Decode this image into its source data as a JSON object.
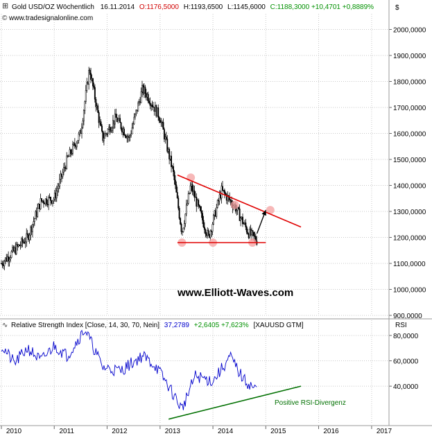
{
  "header": {
    "title": "Gold USD/OZ Wöchentlich",
    "date": "16.11.2014",
    "open": "O:1176,5000",
    "high": "H:1193,6500",
    "low": "L:1145,6000",
    "close_change": "C:1188,3000 +10,4701 +0,8889%",
    "url": "www.tradesignalonline.com",
    "currency": "$"
  },
  "watermark": "www.Elliott-Waves.com",
  "rsi_header": {
    "name": "Relative Strength Index [Close, 14, 30, 70, Nein]",
    "value": "37,2789",
    "change": "+2,6405 +7,623%",
    "symbol": "[XAUUSD GTM]",
    "axis_label": "RSI"
  },
  "annotation": "Positive RSI-Divergenz",
  "colors": {
    "up": "#ffffff",
    "down": "#000000",
    "trendline_price": "#e00000",
    "trendline_rsi": "#007000",
    "rsi_line": "#0000cc",
    "grid": "#c8c8c8",
    "open_text": "#d00000",
    "change_text": "#009000",
    "rsi_value_text": "#0000cc",
    "highlight": "#f4a0a0"
  },
  "chart_data": [
    {
      "type": "candlestick",
      "title": "Gold USD/OZ Wöchentlich",
      "ylim": [
        900,
        2060
      ],
      "y_ticks": [
        "2000,0000",
        "1900,0000",
        "1800,0000",
        "1700,0000",
        "1600,0000",
        "1500,0000",
        "1400,0000",
        "1300,0000",
        "1200,0000",
        "1100,0000",
        "1000,0000",
        "900,0000"
      ],
      "y_tick_values": [
        2000,
        1900,
        1800,
        1700,
        1600,
        1500,
        1400,
        1300,
        1200,
        1100,
        1000,
        900
      ],
      "x_ticks": [
        "2010",
        "2011",
        "2012",
        "2013",
        "2014",
        "2015",
        "2016",
        "2017"
      ],
      "x_range": [
        "2010-01-01",
        "2017-05-01"
      ],
      "series": [
        {
          "dates": [
            "2010-01",
            "2010-04",
            "2010-07",
            "2010-10",
            "2011-01",
            "2011-04",
            "2011-07",
            "2011-09",
            "2011-12",
            "2012-03",
            "2012-06",
            "2012-09",
            "2012-10",
            "2013-01",
            "2013-04",
            "2013-06",
            "2013-08",
            "2013-12",
            "2014-03",
            "2014-06",
            "2014-09",
            "2014-11"
          ],
          "close": [
            1100,
            1150,
            1200,
            1340,
            1350,
            1500,
            1600,
            1850,
            1580,
            1660,
            1580,
            1770,
            1750,
            1660,
            1450,
            1220,
            1400,
            1200,
            1380,
            1320,
            1220,
            1188
          ]
        }
      ],
      "trendlines": [
        {
          "from": [
            "2013-05",
            1440
          ],
          "to": [
            "2015-09",
            1240
          ],
          "color": "red"
        },
        {
          "from": [
            "2013-05",
            1180
          ],
          "to": [
            "2015-01",
            1180
          ],
          "color": "red"
        }
      ],
      "arrow": {
        "from": [
          "2014-11",
          1215
        ],
        "to": [
          "2015-01",
          1305
        ]
      },
      "highlighted_points": [
        [
          "2013-06",
          1180
        ],
        [
          "2014-01",
          1180
        ],
        [
          "2014-10",
          1180
        ],
        [
          "2013-08",
          1430
        ],
        [
          "2014-06",
          1325
        ],
        [
          "2015-02",
          1305
        ]
      ]
    },
    {
      "type": "line",
      "title": "Relative Strength Index [Close, 14, 30, 70, Nein]",
      "ylim": [
        10,
        92
      ],
      "y_ticks": [
        "80,0000",
        "60,0000",
        "40,0000"
      ],
      "y_tick_values": [
        80,
        60,
        40
      ],
      "series": [
        {
          "name": "RSI",
          "dates": [
            "2010-01",
            "2010-04",
            "2010-07",
            "2010-10",
            "2011-01",
            "2011-04",
            "2011-08",
            "2011-12",
            "2012-04",
            "2012-09",
            "2012-12",
            "2013-03",
            "2013-06",
            "2013-09",
            "2014-01",
            "2014-05",
            "2014-08",
            "2014-11"
          ],
          "values": [
            72,
            58,
            70,
            60,
            72,
            64,
            85,
            55,
            52,
            64,
            56,
            40,
            22,
            48,
            44,
            63,
            45,
            37
          ]
        }
      ],
      "trendline": {
        "from": [
          "2013-03",
          14
        ],
        "to": [
          "2015-09",
          40
        ]
      }
    }
  ]
}
